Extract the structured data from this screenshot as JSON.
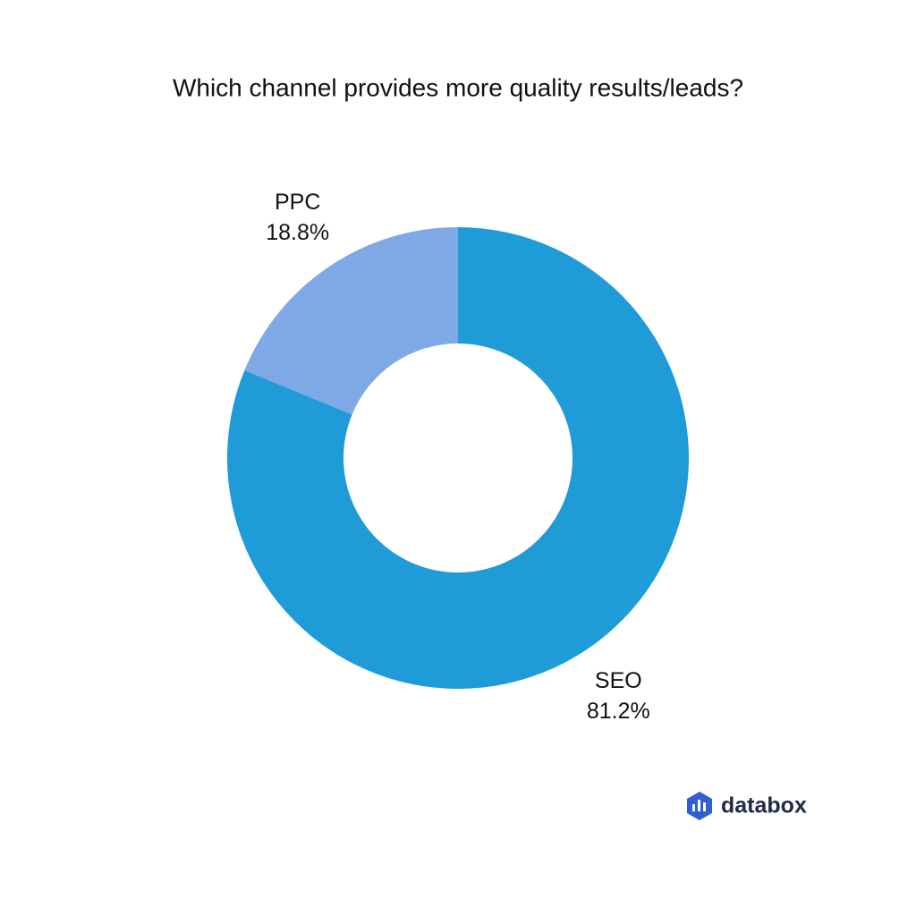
{
  "chart_data": {
    "type": "donut",
    "title": "Which channel provides more quality results/leads?",
    "categories": [
      "SEO",
      "PPC"
    ],
    "values": [
      81.2,
      18.8
    ],
    "value_labels": [
      "81.2%",
      "18.8%"
    ],
    "colors": [
      "#1f9bd7",
      "#7ea8e6"
    ]
  },
  "logo": "databox"
}
